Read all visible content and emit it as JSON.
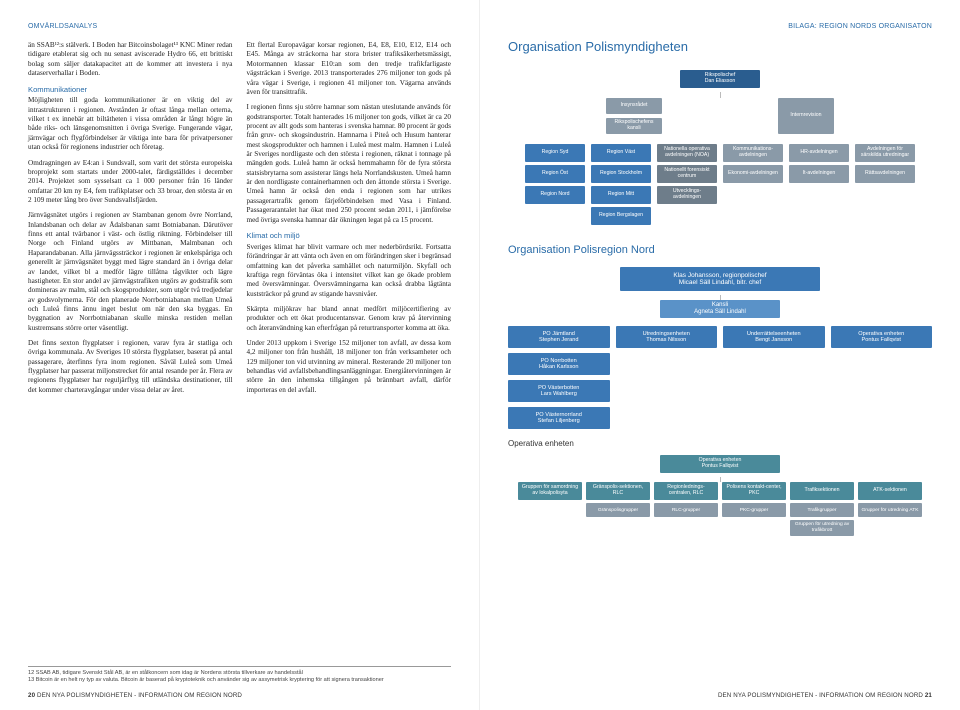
{
  "left": {
    "header": "OMVÄRLDSANALYS",
    "col1": {
      "p1": "än SSAB¹²:s stälverk. I Boden har Bitcoinsbolaget¹³ KNC Miner redan tidigare etablerat sig och nu senast aviscerade Hydro 66, ett brittiskt bolag som säljer datakapacitet att de kommer att investera i nya dataserverhallar i Boden.",
      "h1": "Kommunikationer",
      "p2": "Möjligheten till goda kommunikationer är en viktig del av intrastrukturen i regionen. Avstånden är oftast långa mellan orterna, vilket t ex innebär att biltätheten i vissa områden är långt högre än både riks- och länsgenomsnitten i övriga Sverige. Fungerande vägar, järnvägar och flygförbindelser är viktiga inte bara för privatpersoner utan också för regionens industrier och företag.",
      "p3": "Omdragningen av E4:an i Sundsvall, som varit det största europeiska broprojekt som startats under 2000-talet, färdigställdes i december 2014. Projektet som sysselsatt ca 1 000 personer från 16 länder omfattar 20 km ny E4, fem trafikplatser och 33 broar, den största är en 2 109 meter lång bro över Sundsvallsfjärden.",
      "p4": "Järnvägsnätet utgörs i regionen av Stambanan genom övre Norrland, Inlandsbanan och delar av Ådalsbanan samt Botniabanan. Därutöver finns ett antal tvärbanor i väst- och östlig riktning. Förbindelser till Norge och Finland utgörs av Mittbanan, Malmbanan och Haparandabanan. Alla järnvägssträckor i regionen är enkelspåriga och generellt är järnvägsnätet byggt med lägre standard än i övriga delar av landet, vilket bl a medför lägre tillåtna tågvikter och lägre hastigheter. En stor andel av järnvägstrafiken utgörs av godstrafik som domineras av malm, stål och skogsprodukter, som utgör två tredjedelar av godsvolymerna. För den planerade Norrbotniabanan mellan Umeå och Luleå finns ännu inget beslut om när den ska byggas. En byggnation av Norrbotniabanan skulle minska restiden mellan kustremsans större orter väsentligt.",
      "p5": "Det finns sexton flygplatser i regionen, varav fyra är statliga och övriga kommunala. Av Sveriges 10 största flygplatser, baserat på antal passagerare, återfinns fyra inom regionen. Såväl Luleå som Umeå flygplatser har passerat miljonstrecket för antal resande per år. Flera av regionens flygplatser har reguljärflyg till utländska destinationer, till det kommer charteravgångar under vissa delar av året."
    },
    "col2": {
      "p1": "Ett flertal Europavägar korsar regionen, E4, E8, E10, E12, E14 och E45. Många av sträckorna har stora brister trafiksäkerhetsmässigt, Motormannen klassar E10:an som den tredje trafikfarligaste vägsträckan i Sverige. 2013 transporterades 276 miljoner ton gods på våra vägar i Sverige, i regionen 41 miljoner ton. Vägarna används även för transittrafik.",
      "p2": "I regionen finns sju större hamnar som nästan uteslutande används för godstransporter. Totalt hanterades 16 miljoner ton gods, vilket är ca 20 procent av allt gods som hanteras i svenska hamnar. 80 procent är gods från gruv- och skogsindustrin. Hamnarna i Piteå och Husum hanterar mest skogsprodukter och hamnen i Luleå mest malm. Hamnen i Luleå är Sveriges nordligaste och den största i regionen, räknat i tonnage på mängden gods. Luleå hamn är också hemmahamn för de fyra största statsisbrytarna som assisterar längs hela Norrlandskusten. Umeå hamn är den nordligaste containerhamnen och den åttonde största i Sverige. Umeå hamn är också den enda i regionen som har utrikes passagerartrafik genom färjeförbindelsen med Vasa i Finland. Passagerarantalet har ökat med 250 procent sedan 2011, i jämförelse med övriga svenska hamnar där ökningen legat på ca 15 procent.",
      "h1": "Klimat och miljö",
      "p3": "Sveriges klimat har blivit varmare och mer nederbördsrikt. Fortsatta förändringar är att vänta och även en om förändringen sker i begränsad omfattning kan det påverka samhället och naturmiljön. Skyfall och kraftiga regn förväntas öka i intensitet vilket kan ge ökade problem med översvämningar. Översvämningarna kan också drabba lågtänta kuststräckor på grund av stigande havsnivåer.",
      "p4": "Skärpta miljökrav har bland annat medfört miljöcertifiering av produkter och ett ökat producentansvar. Genom krav på återvinning och återanvändning kan efterfrågan på returtransporter komma att öka.",
      "p5": "Under 2013 uppkom i Sverige 152 miljoner ton avfall, av dessa kom 4,2 miljoner ton från hushåll, 18 miljoner ton från verksamheter och 129 miljoner ton vid utvinning av mineral. Resterande 20 miljoner ton behandlas vid avfallsbehandlingsanläggningar. Energiåtervinningen är större än den inhemska tillgången på brännbart avfall, därför importeras en del avfall."
    },
    "fn1": "12 SSAB AB, tidigare Svenskt Stål AB, är en stålkoncern som idag är Nordens största tillverkare av handelsstål",
    "fn2": "13 Bitcoin är en helt ny typ av valuta. Bitcoin är baserad på kryptoteknik och använder sig av assymetrisk kryptering för att signera transaktioner",
    "footer_num": "20",
    "footer_txt": "DEN NYA POLISMYNDIGHETEN - INFORMATION OM REGION NORD"
  },
  "right": {
    "header": "BILAGA: REGION NORDS ORGANISATON",
    "title1": "Organisation Polismyndigheten",
    "title2": "Organisation Polisregion Nord",
    "sub_oper": "Operativa enheten",
    "org1": {
      "top": "Rikspolischef\nDan Eliasson",
      "left1": "Insynsrådet",
      "left2": "Rikspolischefens kansli",
      "right1": "Internrevision",
      "regions_label": "",
      "regions": [
        "Region Syd",
        "Region Väst",
        "Region Stockholm",
        "Region Öst",
        "Region Mitt",
        "Region Bergslagen",
        "Region Nord"
      ],
      "depts": [
        "Nationella operativa avdelningen (NOA)",
        "Nationellt forensiskt centrum",
        "Utvecklings-avdelningen"
      ],
      "right_col": [
        "Kommunikations-avdelningen",
        "Ekonomi-avdelningen"
      ],
      "far": [
        "HR-avdelningen",
        "It-avdelningen"
      ],
      "farr": [
        "Avdelningen för särskilda utredningar",
        "Rättsavdelningen"
      ]
    },
    "nord": {
      "head": "Klas Johansson, regionpolischef\nMicael Säll Lindahl, bitr. chef",
      "sub": "Kansli\nAgneta Säll Lindahl",
      "grid": [
        "PO Jämtland\nStephen Jerand",
        "Utredningsenheten\nThomas Nilsson",
        "Underrättelseenheten\nBengt Jansson",
        "Operativa enheten\nPontus Fallqvist",
        "PO Norrbotten\nHåkan Karlsson",
        "",
        "",
        "",
        "PO Västerbotten\nLars Wahlberg",
        "",
        "",
        "",
        "PO Västernorrland\nStefan Liljenberg",
        "",
        "",
        ""
      ]
    },
    "oper": {
      "head": "Operativa enheten\nPontus Fallqvist",
      "row1": [
        "Gruppen för samordning av lokalpolisyta",
        "Gränspolis-sektionen, RLC",
        "Regionlednings-centralen, RLC",
        "Polisens kontakt-center, PKC",
        "Trafiksektionen",
        "ATK-sektionen"
      ],
      "row2": [
        "Gränspolisgrupper",
        "RLC-grupper",
        "PKC-grupper",
        "Trafikgrupper",
        "Grupper för utredning ATK"
      ],
      "row3": [
        "Gruppen för utredning av trafikbrott"
      ]
    },
    "footer_txt": "DEN NYA POLISMYNDIGHETEN - INFORMATION OM REGION NORD",
    "footer_num": "21"
  }
}
